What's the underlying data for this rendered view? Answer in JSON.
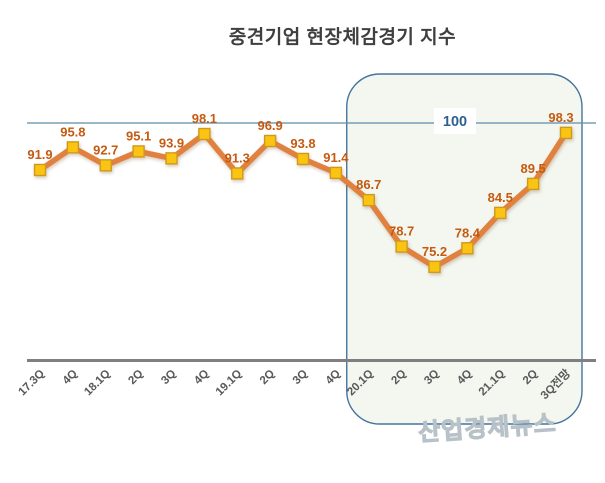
{
  "header": {
    "title": "중견기업 현장체감경기 지수"
  },
  "watermark": {
    "text": "산업경제뉴스"
  },
  "chart_data": {
    "type": "line",
    "title": "중견기업 현장체감경기 지수",
    "categories": [
      "17.3Q",
      "4Q",
      "18.1Q",
      "2Q",
      "3Q",
      "4Q",
      "19.1Q",
      "2Q",
      "3Q",
      "4Q",
      "20.1Q",
      "2Q",
      "3Q",
      "4Q",
      "21.1Q",
      "2Q",
      "3Q전망"
    ],
    "values": [
      91.9,
      95.8,
      92.7,
      95.1,
      93.9,
      98.1,
      91.3,
      96.9,
      93.8,
      91.4,
      86.7,
      78.7,
      75.2,
      78.4,
      84.5,
      89.5,
      98.3
    ],
    "data_labels": true,
    "legend": "none",
    "grid": false,
    "y_axis_visible": false,
    "reference_line": {
      "value": 100,
      "label": "100",
      "color": "#5e8cab",
      "label_color": "#2e6093",
      "label_background": "#ffffff"
    },
    "highlight_region": {
      "from_category": "20.1Q",
      "to_category": "3Q전망",
      "from_index": 10,
      "to_index": 16,
      "fill": "#f3f7f0",
      "border_color": "#46749e"
    },
    "colors": {
      "line": "#e0813f",
      "marker_fill": "#fbc413",
      "marker_border": "#cf9a1b",
      "data_label": "#c55a11",
      "axis_line": "#7f7f7f",
      "axis_label": "#595959",
      "title": "#3f3f3f"
    }
  }
}
